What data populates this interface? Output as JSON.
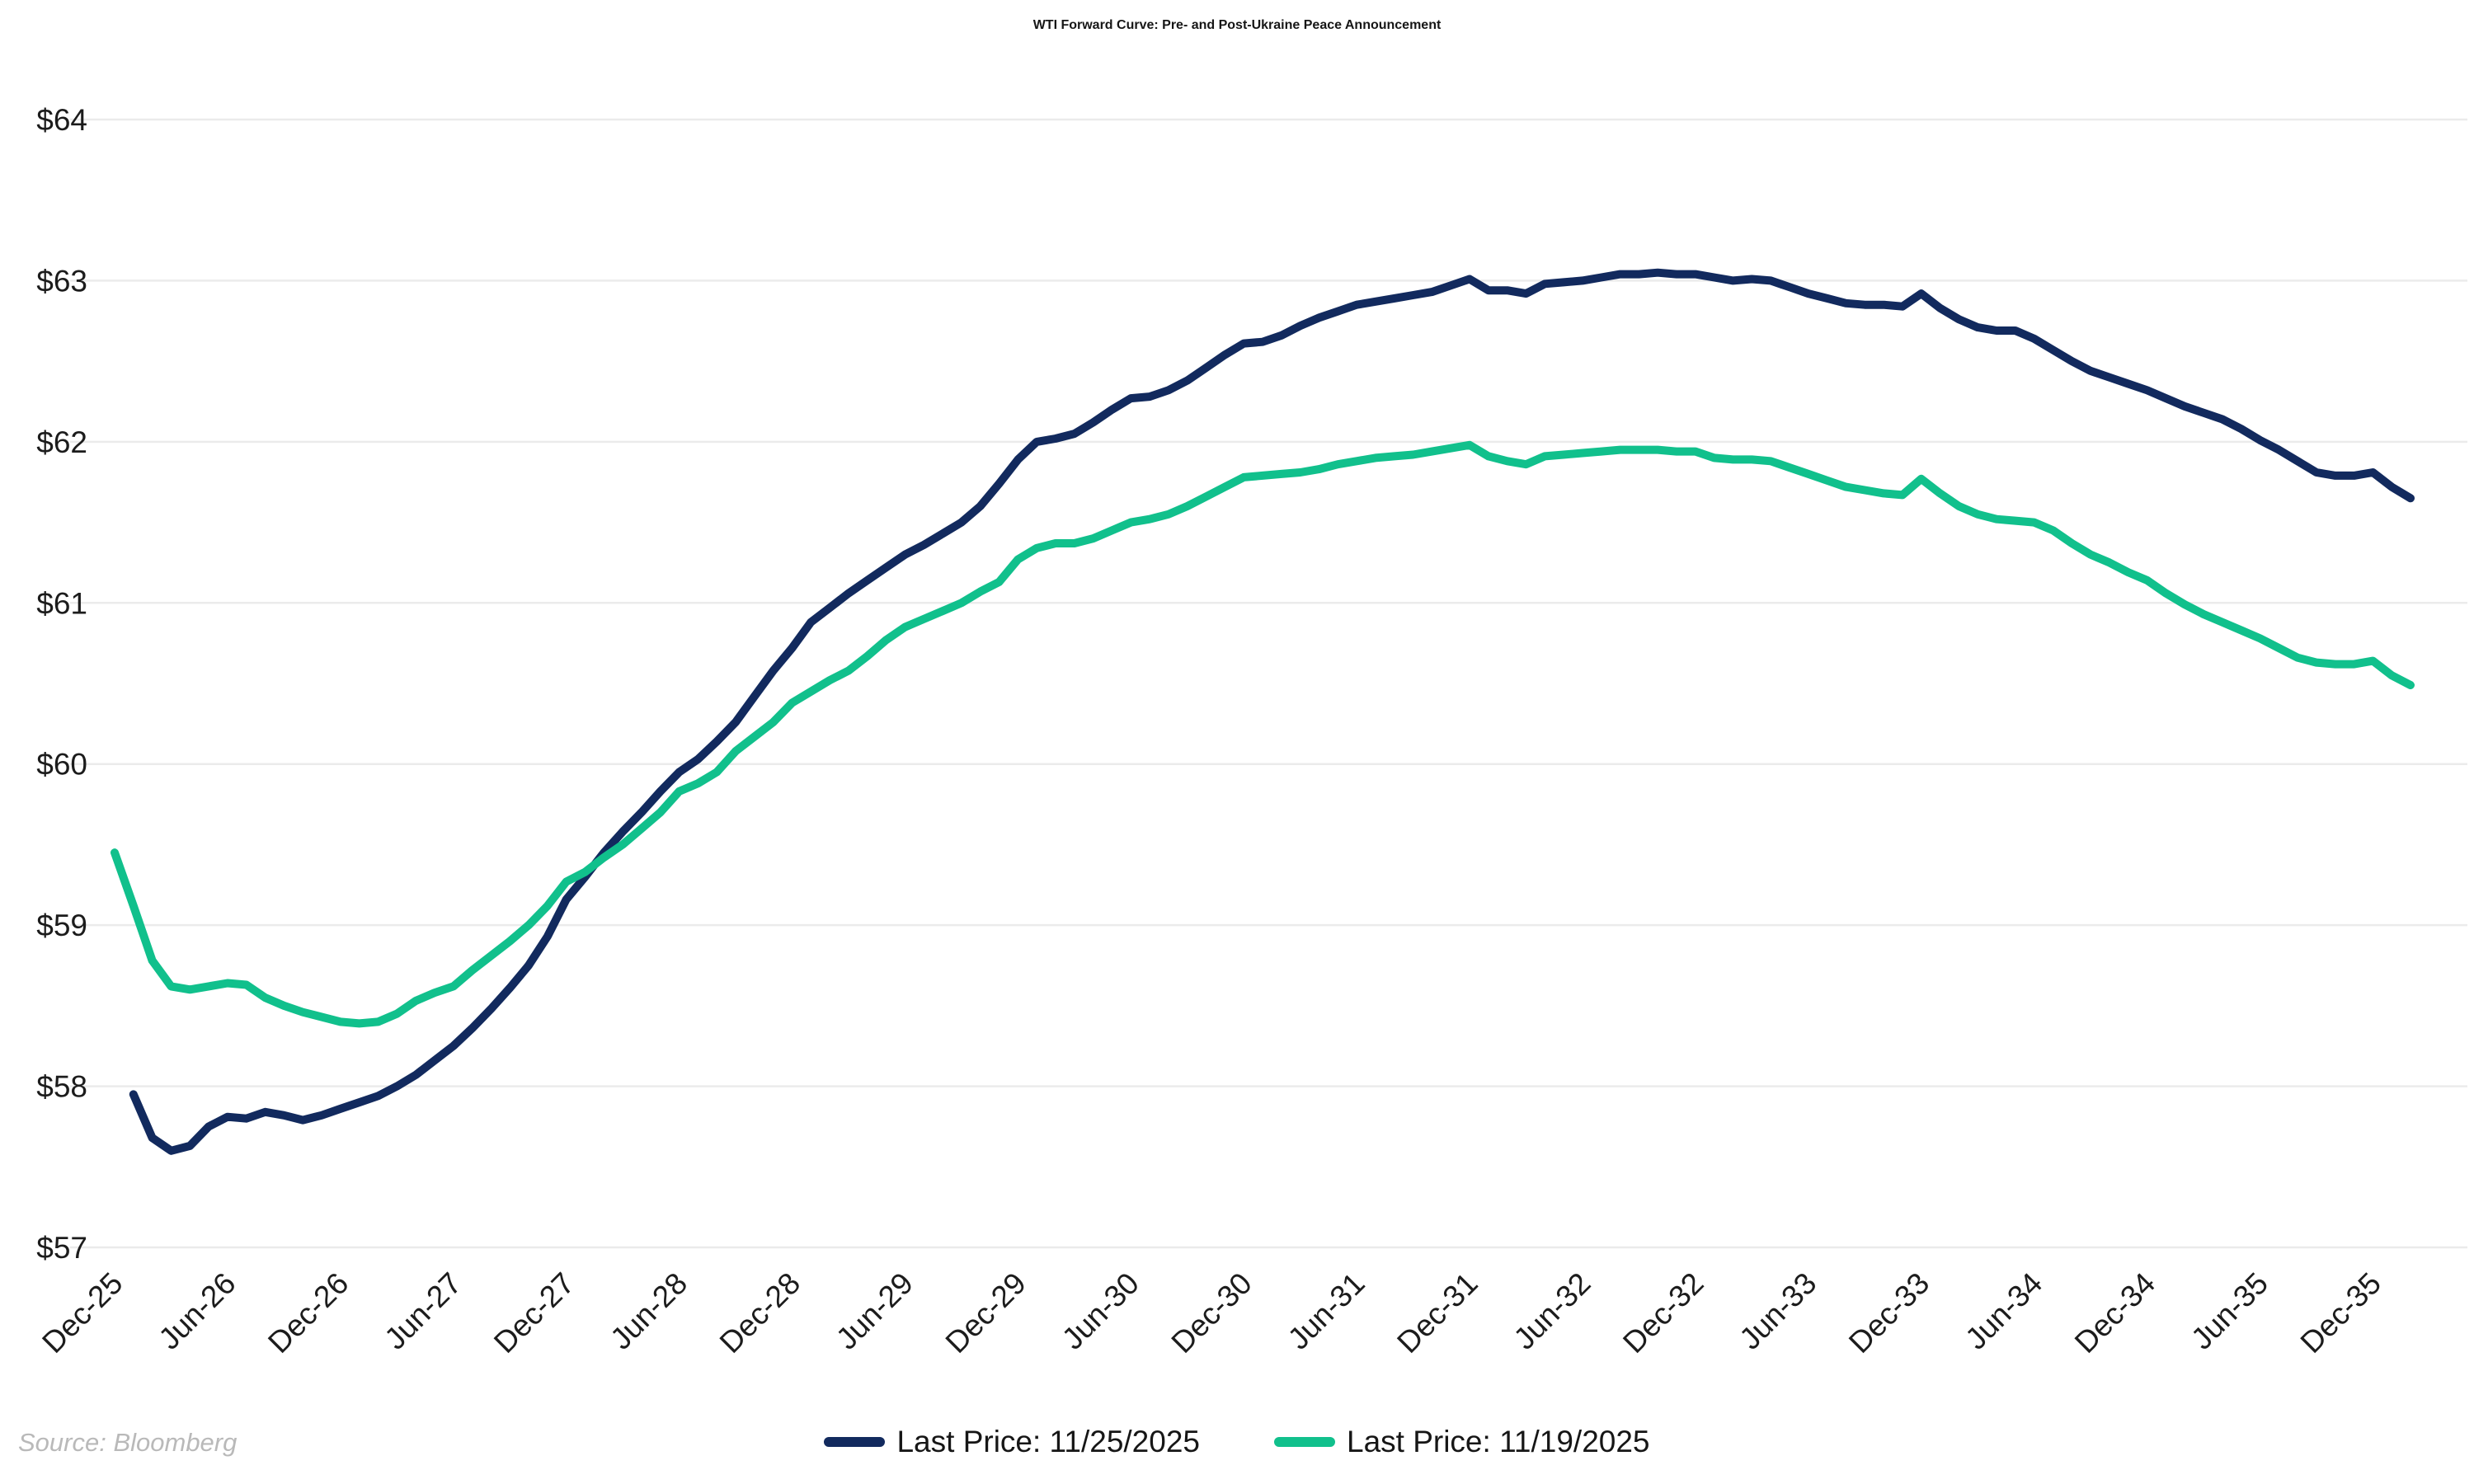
{
  "title": "WTI Forward Curve: Pre- and Post-Ukraine Peace Announcement",
  "source_note": "Source: Bloomberg",
  "legend": {
    "items": [
      {
        "label": "Last Price: 11/25/2025",
        "color": "#122A5E"
      },
      {
        "label": "Last Price: 11/19/2025",
        "color": "#11C08C"
      }
    ]
  },
  "chart_data": {
    "type": "line",
    "title": "WTI Forward Curve: Pre- and Post-Ukraine Peace Announcement",
    "xlabel": "",
    "ylabel": "",
    "unit": "$",
    "ylim": [
      57,
      64
    ],
    "y_ticks": [
      57,
      58,
      59,
      60,
      61,
      62,
      63,
      64
    ],
    "y_tick_labels": [
      "$57",
      "$58",
      "$59",
      "$60",
      "$61",
      "$62",
      "$63",
      "$64"
    ],
    "grid": "horizontal",
    "grid_color": "#ebebeb",
    "legend_position": "bottom",
    "x_tick_every_months": 6,
    "x_tick_labels": [
      "Dec-25",
      "Jun-26",
      "Dec-26",
      "Jun-27",
      "Dec-27",
      "Jun-28",
      "Dec-28",
      "Jun-29",
      "Dec-29",
      "Jun-30",
      "Dec-30",
      "Jun-31",
      "Dec-31",
      "Jun-32",
      "Dec-32",
      "Jun-33",
      "Dec-33",
      "Jun-34",
      "Dec-34",
      "Jun-35",
      "Dec-35"
    ],
    "months": [
      "Dec-25",
      "Jan-26",
      "Feb-26",
      "Mar-26",
      "Apr-26",
      "May-26",
      "Jun-26",
      "Jul-26",
      "Aug-26",
      "Sep-26",
      "Oct-26",
      "Nov-26",
      "Dec-26",
      "Jan-27",
      "Feb-27",
      "Mar-27",
      "Apr-27",
      "May-27",
      "Jun-27",
      "Jul-27",
      "Aug-27",
      "Sep-27",
      "Oct-27",
      "Nov-27",
      "Dec-27",
      "Jan-28",
      "Feb-28",
      "Mar-28",
      "Apr-28",
      "May-28",
      "Jun-28",
      "Jul-28",
      "Aug-28",
      "Sep-28",
      "Oct-28",
      "Nov-28",
      "Dec-28",
      "Jan-29",
      "Feb-29",
      "Mar-29",
      "Apr-29",
      "May-29",
      "Jun-29",
      "Jul-29",
      "Aug-29",
      "Sep-29",
      "Oct-29",
      "Nov-29",
      "Dec-29",
      "Jan-30",
      "Feb-30",
      "Mar-30",
      "Apr-30",
      "May-30",
      "Jun-30",
      "Jul-30",
      "Aug-30",
      "Sep-30",
      "Oct-30",
      "Nov-30",
      "Dec-30",
      "Jan-31",
      "Feb-31",
      "Mar-31",
      "Apr-31",
      "May-31",
      "Jun-31",
      "Jul-31",
      "Aug-31",
      "Sep-31",
      "Oct-31",
      "Nov-31",
      "Dec-31",
      "Jan-32",
      "Feb-32",
      "Mar-32",
      "Apr-32",
      "May-32",
      "Jun-32",
      "Jul-32",
      "Aug-32",
      "Sep-32",
      "Oct-32",
      "Nov-32",
      "Dec-32",
      "Jan-33",
      "Feb-33",
      "Mar-33",
      "Apr-33",
      "May-33",
      "Jun-33",
      "Jul-33",
      "Aug-33",
      "Sep-33",
      "Oct-33",
      "Nov-33",
      "Dec-33",
      "Jan-34",
      "Feb-34",
      "Mar-34",
      "Apr-34",
      "May-34",
      "Jun-34",
      "Jul-34",
      "Aug-34",
      "Sep-34",
      "Oct-34",
      "Nov-34",
      "Dec-34",
      "Jan-35",
      "Feb-35",
      "Mar-35",
      "Apr-35",
      "May-35",
      "Jun-35",
      "Jul-35",
      "Aug-35",
      "Sep-35",
      "Oct-35",
      "Nov-35",
      "Dec-35",
      "Jan-36",
      "Feb-36"
    ],
    "series": [
      {
        "name": "Last Price: 11/25/2025",
        "color": "#122A5E",
        "values": [
          null,
          57.95,
          57.68,
          57.6,
          57.63,
          57.75,
          57.81,
          57.8,
          57.84,
          57.82,
          57.79,
          57.82,
          57.86,
          57.9,
          57.94,
          58.0,
          58.07,
          58.16,
          58.25,
          58.36,
          58.48,
          58.61,
          58.75,
          58.93,
          59.16,
          59.3,
          59.45,
          59.58,
          59.7,
          59.83,
          59.95,
          60.03,
          60.14,
          60.26,
          60.42,
          60.58,
          60.72,
          60.88,
          60.97,
          61.06,
          61.14,
          61.22,
          61.3,
          61.36,
          61.43,
          61.5,
          61.6,
          61.74,
          61.89,
          62.0,
          62.02,
          62.05,
          62.12,
          62.2,
          62.27,
          62.28,
          62.32,
          62.38,
          62.46,
          62.54,
          62.61,
          62.62,
          62.66,
          62.72,
          62.77,
          62.81,
          62.85,
          62.87,
          62.89,
          62.91,
          62.93,
          62.97,
          63.01,
          62.94,
          62.94,
          62.92,
          62.98,
          62.99,
          63.0,
          63.02,
          63.04,
          63.04,
          63.05,
          63.04,
          63.04,
          63.02,
          63.0,
          63.01,
          63.0,
          62.96,
          62.92,
          62.89,
          62.86,
          62.85,
          62.85,
          62.84,
          62.92,
          62.83,
          62.76,
          62.71,
          62.69,
          62.69,
          62.64,
          62.57,
          62.5,
          62.44,
          62.4,
          62.36,
          62.32,
          62.27,
          62.22,
          62.18,
          62.14,
          62.08,
          62.01,
          61.95,
          61.88,
          61.81,
          61.79,
          61.79,
          61.81,
          61.72,
          61.65
        ]
      },
      {
        "name": "Last Price: 11/19/2025",
        "color": "#11C08C",
        "values": [
          59.45,
          59.12,
          58.78,
          58.62,
          58.6,
          58.62,
          58.64,
          58.63,
          58.55,
          58.5,
          58.46,
          58.43,
          58.4,
          58.39,
          58.4,
          58.45,
          58.53,
          58.58,
          58.62,
          58.72,
          58.81,
          58.9,
          59.0,
          59.12,
          59.27,
          59.33,
          59.42,
          59.5,
          59.6,
          59.7,
          59.83,
          59.88,
          59.95,
          60.08,
          60.17,
          60.26,
          60.38,
          60.45,
          60.52,
          60.58,
          60.67,
          60.77,
          60.85,
          60.9,
          60.95,
          61.0,
          61.07,
          61.13,
          61.27,
          61.34,
          61.37,
          61.37,
          61.4,
          61.45,
          61.5,
          61.52,
          61.55,
          61.6,
          61.66,
          61.72,
          61.78,
          61.79,
          61.8,
          61.81,
          61.83,
          61.86,
          61.88,
          61.9,
          61.91,
          61.92,
          61.94,
          61.96,
          61.98,
          61.91,
          61.88,
          61.86,
          61.91,
          61.92,
          61.93,
          61.94,
          61.95,
          61.95,
          61.95,
          61.94,
          61.94,
          61.9,
          61.89,
          61.89,
          61.88,
          61.84,
          61.8,
          61.76,
          61.72,
          61.7,
          61.68,
          61.67,
          61.77,
          61.68,
          61.6,
          61.55,
          61.52,
          61.51,
          61.5,
          61.45,
          61.37,
          61.3,
          61.25,
          61.19,
          61.14,
          61.06,
          60.99,
          60.93,
          60.88,
          60.83,
          60.78,
          60.72,
          60.66,
          60.63,
          60.62,
          60.62,
          60.64,
          60.55,
          60.49
        ]
      }
    ]
  }
}
